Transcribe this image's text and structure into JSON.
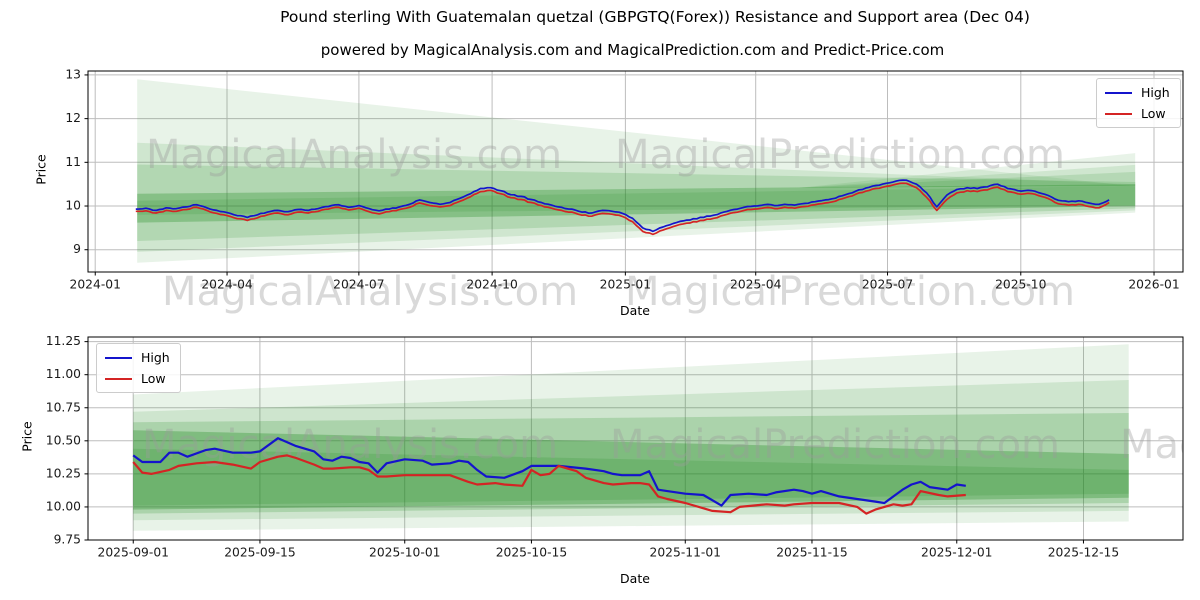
{
  "header": {
    "title": "Pound sterling With Guatemalan quetzal (GBPGTQ(Forex)) Resistance and Support area (Dec 04)",
    "subtitle": "powered by MagicalAnalysis.com and MagicalPrediction.com and Predict-Price.com"
  },
  "watermarks": {
    "analysis": "MagicalAnalysis.com",
    "prediction": "MagicalPrediction.com"
  },
  "colors": {
    "high": "#1414cc",
    "low": "#d42424",
    "band": "#228B22",
    "grid": "#bdbdbd",
    "spine": "#000000",
    "text": "#1a1a1a",
    "watermark": "#9a9a9a"
  },
  "chart_data": [
    {
      "type": "line",
      "title": "",
      "xlabel": "Date",
      "ylabel": "Price",
      "grid": true,
      "legend_position": "upper right",
      "xlim": [
        "2023-12-27",
        "2026-01-21"
      ],
      "ylim": [
        8.49,
        13.09
      ],
      "yticks": [
        9,
        10,
        11,
        12,
        13
      ],
      "ytick_labels": [
        "9",
        "10",
        "11",
        "12",
        "13"
      ],
      "xticks": [
        "2024-01-01",
        "2024-04-01",
        "2024-07-01",
        "2024-10-01",
        "2025-01-01",
        "2025-04-01",
        "2025-07-01",
        "2025-10-01",
        "2026-01-01"
      ],
      "xtick_labels": [
        "2024-01",
        "2024-04",
        "2024-07",
        "2024-10",
        "2025-01",
        "2025-04",
        "2025-07",
        "2025-10",
        "2026-01"
      ],
      "series": [
        {
          "name": "High",
          "color_key": "high",
          "start": "2024-01-29",
          "step_days": 7,
          "values": [
            9.93,
            9.95,
            9.9,
            9.96,
            9.94,
            9.98,
            10.03,
            9.96,
            9.9,
            9.85,
            9.78,
            9.74,
            9.8,
            9.86,
            9.9,
            9.87,
            9.92,
            9.9,
            9.94,
            9.99,
            10.03,
            9.97,
            10.01,
            9.94,
            9.89,
            9.93,
            9.98,
            10.04,
            10.14,
            10.08,
            10.04,
            10.08,
            10.18,
            10.28,
            10.4,
            10.42,
            10.35,
            10.26,
            10.22,
            10.15,
            10.08,
            10.02,
            9.97,
            9.93,
            9.86,
            9.84,
            9.9,
            9.88,
            9.83,
            9.72,
            9.5,
            9.42,
            9.52,
            9.6,
            9.66,
            9.71,
            9.74,
            9.79,
            9.86,
            9.92,
            9.97,
            10.0,
            10.03,
            10.01,
            10.04,
            10.02,
            10.06,
            10.1,
            10.14,
            10.18,
            10.26,
            10.34,
            10.41,
            10.47,
            10.52,
            10.57,
            10.59,
            10.5,
            10.3,
            9.98,
            10.25,
            10.38,
            10.42,
            10.4,
            10.44,
            10.5,
            10.4,
            10.35,
            10.36,
            10.31,
            10.24,
            10.13,
            10.1,
            10.12,
            10.07,
            10.04,
            10.14
          ]
        },
        {
          "name": "Low",
          "color_key": "low",
          "start": "2024-01-29",
          "step_days": 7,
          "values": [
            9.88,
            9.89,
            9.84,
            9.9,
            9.88,
            9.92,
            9.97,
            9.9,
            9.83,
            9.78,
            9.71,
            9.67,
            9.73,
            9.8,
            9.84,
            9.8,
            9.86,
            9.84,
            9.88,
            9.93,
            9.97,
            9.91,
            9.95,
            9.87,
            9.82,
            9.87,
            9.92,
            9.97,
            10.07,
            10.01,
            9.98,
            10.01,
            10.11,
            10.21,
            10.33,
            10.36,
            10.28,
            10.19,
            10.15,
            10.08,
            10.01,
            9.95,
            9.9,
            9.86,
            9.79,
            9.77,
            9.83,
            9.81,
            9.76,
            9.64,
            9.42,
            9.35,
            9.45,
            9.53,
            9.59,
            9.64,
            9.67,
            9.72,
            9.79,
            9.85,
            9.9,
            9.93,
            9.96,
            9.94,
            9.97,
            9.95,
            9.99,
            10.03,
            10.07,
            10.11,
            10.19,
            10.27,
            10.34,
            10.4,
            10.45,
            10.5,
            10.52,
            10.42,
            10.2,
            9.9,
            10.15,
            10.3,
            10.35,
            10.33,
            10.37,
            10.43,
            10.33,
            10.28,
            10.29,
            10.24,
            10.17,
            10.05,
            10.02,
            10.04,
            9.99,
            9.96,
            10.08
          ]
        }
      ],
      "bands": {
        "start": "2024-01-30",
        "end": "2025-12-19",
        "layers": [
          {
            "top": [
              12.9,
              10.45
            ],
            "bottom": [
              8.7,
              9.85
            ],
            "alpha": 0.1
          },
          {
            "top": [
              11.45,
              10.5
            ],
            "bottom": [
              8.95,
              9.9
            ],
            "alpha": 0.12
          },
          {
            "top": [
              10.95,
              10.55
            ],
            "bottom": [
              9.2,
              9.95
            ],
            "alpha": 0.16
          },
          {
            "top": [
              10.28,
              10.5
            ],
            "bottom": [
              9.62,
              10.0
            ],
            "alpha": 0.3
          },
          {
            "top": [
              10.12,
              10.46
            ],
            "bottom": [
              9.8,
              10.02
            ],
            "alpha": 0.15
          }
        ],
        "fan": {
          "origin": "2025-05-01",
          "value": 10.42,
          "base": 10.46,
          "tops": [
            11.21,
            10.94,
            10.78
          ],
          "alphas": [
            0.1,
            0.12,
            0.15
          ]
        }
      }
    },
    {
      "type": "line",
      "title": "",
      "xlabel": "Date",
      "ylabel": "Price",
      "grid": true,
      "legend_position": "upper left",
      "xlim": [
        "2025-08-27",
        "2025-12-26"
      ],
      "ylim": [
        9.75,
        11.285
      ],
      "yticks": [
        9.75,
        10.0,
        10.25,
        10.5,
        10.75,
        11.0,
        11.25
      ],
      "ytick_labels": [
        "9.75",
        "10.00",
        "10.25",
        "10.50",
        "10.75",
        "11.00",
        "11.25"
      ],
      "xticks": [
        "2025-09-01",
        "2025-09-15",
        "2025-10-01",
        "2025-10-15",
        "2025-11-01",
        "2025-11-15",
        "2025-12-01",
        "2025-12-15"
      ],
      "xtick_labels": [
        "2025-09-01",
        "2025-09-15",
        "2025-10-01",
        "2025-10-15",
        "2025-11-01",
        "2025-11-15",
        "2025-12-01",
        "2025-12-15"
      ],
      "series": [
        {
          "name": "High",
          "color_key": "high",
          "start": "2025-09-01",
          "points": [
            [
              0,
              10.39
            ],
            [
              1,
              10.34
            ],
            [
              3,
              10.34
            ],
            [
              4,
              10.41
            ],
            [
              5,
              10.41
            ],
            [
              6,
              10.38
            ],
            [
              8,
              10.43
            ],
            [
              9,
              10.44
            ],
            [
              11,
              10.41
            ],
            [
              13,
              10.41
            ],
            [
              14,
              10.42
            ],
            [
              16,
              10.52
            ],
            [
              18,
              10.46
            ],
            [
              20,
              10.42
            ],
            [
              21,
              10.36
            ],
            [
              22,
              10.35
            ],
            [
              23,
              10.38
            ],
            [
              24,
              10.37
            ],
            [
              25,
              10.34
            ],
            [
              26,
              10.33
            ],
            [
              27,
              10.26
            ],
            [
              28,
              10.33
            ],
            [
              30,
              10.36
            ],
            [
              32,
              10.35
            ],
            [
              33,
              10.32
            ],
            [
              35,
              10.33
            ],
            [
              36,
              10.35
            ],
            [
              37,
              10.34
            ],
            [
              38,
              10.28
            ],
            [
              39,
              10.23
            ],
            [
              41,
              10.22
            ],
            [
              43,
              10.27
            ],
            [
              44,
              10.31
            ],
            [
              47,
              10.31
            ],
            [
              50,
              10.29
            ],
            [
              52,
              10.27
            ],
            [
              53,
              10.25
            ],
            [
              54,
              10.24
            ],
            [
              56,
              10.24
            ],
            [
              57,
              10.27
            ],
            [
              58,
              10.13
            ],
            [
              59,
              10.12
            ],
            [
              61,
              10.1
            ],
            [
              63,
              10.09
            ],
            [
              65,
              10.01
            ],
            [
              66,
              10.09
            ],
            [
              68,
              10.1
            ],
            [
              70,
              10.09
            ],
            [
              71,
              10.11
            ],
            [
              73,
              10.13
            ],
            [
              74,
              10.12
            ],
            [
              75,
              10.1
            ],
            [
              76,
              10.12
            ],
            [
              78,
              10.08
            ],
            [
              80,
              10.06
            ],
            [
              82,
              10.04
            ],
            [
              83,
              10.03
            ],
            [
              85,
              10.13
            ],
            [
              86,
              10.17
            ],
            [
              87,
              10.19
            ],
            [
              88,
              10.15
            ],
            [
              90,
              10.13
            ],
            [
              91,
              10.17
            ],
            [
              92,
              10.16
            ]
          ]
        },
        {
          "name": "Low",
          "color_key": "low",
          "start": "2025-09-01",
          "points": [
            [
              0,
              10.34
            ],
            [
              1,
              10.26
            ],
            [
              2,
              10.25
            ],
            [
              4,
              10.28
            ],
            [
              5,
              10.31
            ],
            [
              7,
              10.33
            ],
            [
              9,
              10.34
            ],
            [
              11,
              10.32
            ],
            [
              13,
              10.29
            ],
            [
              14,
              10.34
            ],
            [
              16,
              10.38
            ],
            [
              17,
              10.39
            ],
            [
              18,
              10.37
            ],
            [
              20,
              10.32
            ],
            [
              21,
              10.29
            ],
            [
              22,
              10.29
            ],
            [
              24,
              10.3
            ],
            [
              25,
              10.3
            ],
            [
              26,
              10.28
            ],
            [
              27,
              10.23
            ],
            [
              28,
              10.23
            ],
            [
              30,
              10.24
            ],
            [
              33,
              10.24
            ],
            [
              35,
              10.24
            ],
            [
              37,
              10.19
            ],
            [
              38,
              10.17
            ],
            [
              40,
              10.18
            ],
            [
              41,
              10.17
            ],
            [
              43,
              10.16
            ],
            [
              44,
              10.28
            ],
            [
              45,
              10.24
            ],
            [
              46,
              10.25
            ],
            [
              47,
              10.31
            ],
            [
              49,
              10.27
            ],
            [
              50,
              10.22
            ],
            [
              52,
              10.18
            ],
            [
              53,
              10.17
            ],
            [
              55,
              10.18
            ],
            [
              56,
              10.18
            ],
            [
              57,
              10.17
            ],
            [
              58,
              10.08
            ],
            [
              59,
              10.06
            ],
            [
              61,
              10.03
            ],
            [
              64,
              9.97
            ],
            [
              66,
              9.96
            ],
            [
              67,
              10.0
            ],
            [
              70,
              10.02
            ],
            [
              72,
              10.01
            ],
            [
              73,
              10.02
            ],
            [
              75,
              10.03
            ],
            [
              78,
              10.03
            ],
            [
              80,
              10.0
            ],
            [
              81,
              9.95
            ],
            [
              82,
              9.98
            ],
            [
              84,
              10.02
            ],
            [
              85,
              10.01
            ],
            [
              86,
              10.02
            ],
            [
              87,
              10.12
            ],
            [
              89,
              10.09
            ],
            [
              90,
              10.08
            ],
            [
              92,
              10.09
            ]
          ]
        }
      ],
      "bands": {
        "start": "2025-09-01",
        "end": "2025-12-20",
        "layers": [
          {
            "top": [
              10.85,
              11.23
            ],
            "bottom": [
              9.82,
              9.89
            ],
            "alpha": 0.1
          },
          {
            "top": [
              10.72,
              10.96
            ],
            "bottom": [
              9.9,
              9.97
            ],
            "alpha": 0.13
          },
          {
            "top": [
              10.64,
              10.71
            ],
            "bottom": [
              9.95,
              10.03
            ],
            "alpha": 0.2
          },
          {
            "top": [
              10.58,
              10.4
            ],
            "bottom": [
              9.98,
              10.07
            ],
            "alpha": 0.32
          },
          {
            "top": [
              10.44,
              10.28
            ],
            "bottom": [
              10.01,
              10.1
            ],
            "alpha": 0.18
          }
        ]
      }
    }
  ]
}
